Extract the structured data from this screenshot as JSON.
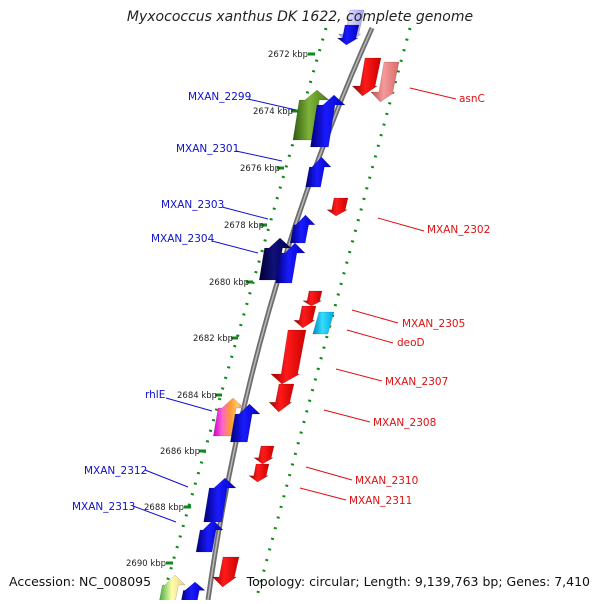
{
  "title": "Myxococcus xanthus DK 1622, complete genome",
  "accession": "Accession: NC_008095",
  "topology": "Topology: circular; Length: 9,139,763 bp; Genes: 7,410",
  "colors": {
    "backbone": "#8a8a8a",
    "plus_strand_label": "#1010cc",
    "minus_strand_label": "#dd1111",
    "dotted_track": "#0d8a1a",
    "tick_label": "#222222"
  },
  "ticks": [
    "2672 kbp",
    "2674 kbp",
    "2676 kbp",
    "2678 kbp",
    "2680 kbp",
    "2682 kbp",
    "2684 kbp",
    "2686 kbp",
    "2688 kbp",
    "2690 kbp"
  ],
  "plus_labels": [
    "MXAN_2299",
    "MXAN_2301",
    "MXAN_2303",
    "MXAN_2304",
    "rhlE",
    "MXAN_2312",
    "MXAN_2313"
  ],
  "minus_labels": [
    "asnC",
    "MXAN_2302",
    "MXAN_2305",
    "deoD",
    "MXAN_2307",
    "MXAN_2308",
    "MXAN_2310",
    "MXAN_2311"
  ]
}
